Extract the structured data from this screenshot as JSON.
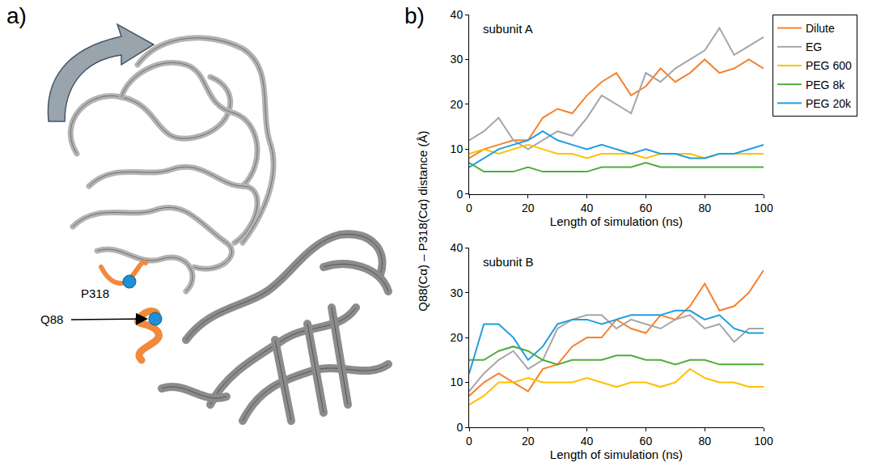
{
  "panel_a": {
    "letter": "a)",
    "residue_labels": [
      "P318",
      "Q88"
    ]
  },
  "panel_b": {
    "letter": "b)",
    "ylabel": "Q88(Cα) – P318(Cα) distance (Å)"
  },
  "chart_data": [
    {
      "type": "line",
      "title": "subunit A",
      "xlabel": "Length of simulation (ns)",
      "x": [
        0,
        5,
        10,
        15,
        20,
        25,
        30,
        35,
        40,
        45,
        50,
        55,
        60,
        65,
        70,
        75,
        80,
        85,
        90,
        95,
        100
      ],
      "xlim": [
        0,
        100
      ],
      "xticks": [
        0,
        20,
        40,
        60,
        80,
        100
      ],
      "ylim": [
        0,
        40
      ],
      "yticks": [
        0,
        10,
        20,
        30,
        40
      ],
      "grid": false,
      "legend": "right",
      "series": [
        {
          "name": "Dilute",
          "color": "#f5822e",
          "values": [
            8,
            10,
            11,
            12,
            12,
            17,
            19,
            18,
            22,
            25,
            27,
            22,
            24,
            28,
            25,
            27,
            30,
            27,
            28,
            30,
            28
          ]
        },
        {
          "name": "EG",
          "color": "#a6a6a6",
          "values": [
            12,
            14,
            17,
            12,
            10,
            12,
            14,
            13,
            17,
            22,
            20,
            18,
            27,
            25,
            28,
            30,
            32,
            37,
            31,
            33,
            35
          ]
        },
        {
          "name": "PEG 600",
          "color": "#ffc000",
          "values": [
            9,
            10,
            9,
            10,
            11,
            10,
            9,
            9,
            8,
            9,
            9,
            9,
            8,
            9,
            9,
            9,
            8,
            9,
            9,
            9,
            9
          ]
        },
        {
          "name": "PEG 8k",
          "color": "#4ead3a",
          "values": [
            7,
            5,
            5,
            5,
            6,
            5,
            5,
            5,
            5,
            6,
            6,
            6,
            7,
            6,
            6,
            6,
            6,
            6,
            6,
            6,
            6
          ]
        },
        {
          "name": "PEG 20k",
          "color": "#1f9ee0",
          "values": [
            6,
            8,
            10,
            11,
            12,
            14,
            12,
            11,
            10,
            11,
            10,
            9,
            10,
            9,
            9,
            8,
            8,
            9,
            9,
            10,
            11
          ]
        }
      ]
    },
    {
      "type": "line",
      "title": "subunit B",
      "xlabel": "Length of simulation (ns)",
      "x": [
        0,
        5,
        10,
        15,
        20,
        25,
        30,
        35,
        40,
        45,
        50,
        55,
        60,
        65,
        70,
        75,
        80,
        85,
        90,
        95,
        100
      ],
      "xlim": [
        0,
        100
      ],
      "xticks": [
        0,
        20,
        40,
        60,
        80,
        100
      ],
      "ylim": [
        0,
        40
      ],
      "yticks": [
        0,
        10,
        20,
        30,
        40
      ],
      "grid": false,
      "series": [
        {
          "name": "Dilute",
          "color": "#f5822e",
          "values": [
            7,
            10,
            12,
            10,
            8,
            13,
            14,
            18,
            20,
            20,
            24,
            22,
            21,
            25,
            24,
            27,
            32,
            26,
            27,
            30,
            35
          ]
        },
        {
          "name": "EG",
          "color": "#a6a6a6",
          "values": [
            8,
            12,
            15,
            17,
            13,
            15,
            22,
            24,
            25,
            25,
            22,
            24,
            23,
            22,
            24,
            25,
            22,
            23,
            19,
            22,
            22
          ]
        },
        {
          "name": "PEG 600",
          "color": "#ffc000",
          "values": [
            5,
            7,
            10,
            10,
            11,
            10,
            10,
            10,
            11,
            10,
            9,
            10,
            10,
            9,
            10,
            13,
            11,
            10,
            10,
            9,
            9
          ]
        },
        {
          "name": "PEG 8k",
          "color": "#4ead3a",
          "values": [
            15,
            15,
            17,
            18,
            17,
            15,
            14,
            15,
            15,
            15,
            16,
            16,
            15,
            15,
            14,
            15,
            15,
            14,
            14,
            14,
            14
          ]
        },
        {
          "name": "PEG 20k",
          "color": "#1f9ee0",
          "values": [
            12,
            23,
            23,
            20,
            15,
            18,
            23,
            24,
            24,
            23,
            24,
            25,
            25,
            25,
            26,
            26,
            24,
            25,
            22,
            21,
            21
          ]
        }
      ]
    }
  ]
}
